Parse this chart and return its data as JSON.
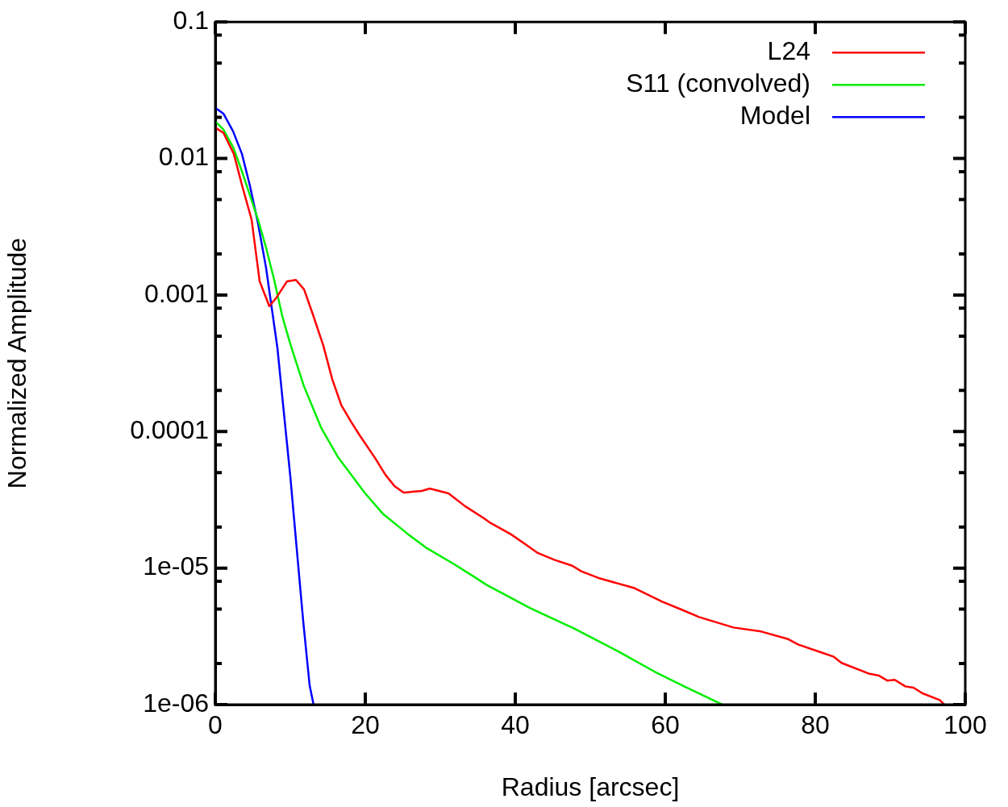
{
  "chart_data": {
    "type": "line",
    "xlabel": "Radius [arcsec]",
    "ylabel": "Normalized Amplitude",
    "log": "y",
    "grid": false,
    "legend": "top right",
    "marker": "none",
    "line_style": "solid",
    "xlim": [
      0,
      100
    ],
    "xticks": [
      0,
      20,
      40,
      60,
      80,
      100
    ],
    "ylim": [
      1e-06,
      0.1
    ],
    "yticks": [
      {
        "value": 1e-06,
        "label": "1e-06"
      },
      {
        "value": 2e-06,
        "label": null
      },
      {
        "value": 5e-06,
        "label": null
      },
      {
        "value": 8e-06,
        "label": null
      },
      {
        "value": 1e-05,
        "label": "1e-05"
      },
      {
        "value": 2e-05,
        "label": null
      },
      {
        "value": 5e-05,
        "label": null
      },
      {
        "value": 8e-05,
        "label": null
      },
      {
        "value": 0.0001,
        "label": "0.0001"
      },
      {
        "value": 0.0002,
        "label": null
      },
      {
        "value": 0.0005,
        "label": null
      },
      {
        "value": 0.0008,
        "label": null
      },
      {
        "value": 0.001,
        "label": "0.001"
      },
      {
        "value": 0.002,
        "label": null
      },
      {
        "value": 0.005,
        "label": null
      },
      {
        "value": 0.008,
        "label": null
      },
      {
        "value": 0.01,
        "label": "0.01"
      },
      {
        "value": 0.02,
        "label": null
      },
      {
        "value": 0.05,
        "label": null
      },
      {
        "value": 0.08,
        "label": null
      },
      {
        "value": 0.1,
        "label": "0.1"
      }
    ],
    "series": [
      {
        "name": "L24",
        "color": "#ff0000",
        "x": [
          0,
          1.08,
          2.47,
          3.55,
          4.84,
          5.91,
          7.2,
          8.17,
          9.57,
          10.75,
          11.83,
          13.0,
          14.4,
          15.6,
          16.8,
          18.1,
          19.2,
          21.3,
          22.7,
          23.9,
          25.1,
          27.5,
          28.6,
          31.1,
          33.3,
          35.8,
          36.7,
          39.4,
          41.6,
          43.0,
          45.2,
          47.6,
          48.8,
          51.3,
          55.9,
          59.6,
          62.0,
          64.5,
          69.1,
          72.8,
          76.3,
          77.7,
          81.1,
          82.4,
          83.5,
          87.1,
          88.5,
          89.6,
          90.6,
          92.0,
          93.1,
          94.3,
          96.6,
          97.2
        ],
        "values": [
          0.0168,
          0.0154,
          0.0108,
          0.0064,
          0.00357,
          0.00126,
          0.000828,
          0.00096,
          0.00126,
          0.00129,
          0.0011,
          0.000723,
          0.000426,
          0.000241,
          0.000156,
          0.000118,
          9.47e-05,
          6.4e-05,
          4.81e-05,
          3.98e-05,
          3.57e-05,
          3.67e-05,
          3.82e-05,
          3.52e-05,
          2.84e-05,
          2.32e-05,
          2.14e-05,
          1.77e-05,
          1.46e-05,
          1.29e-05,
          1.15e-05,
          1.04e-05,
          9.47e-06,
          8.39e-06,
          7.13e-06,
          5.67e-06,
          5.01e-06,
          4.38e-06,
          3.67e-06,
          3.43e-06,
          3.03e-06,
          2.76e-06,
          2.38e-06,
          2.25e-06,
          2.02e-06,
          1.69e-06,
          1.63e-06,
          1.5e-06,
          1.52e-06,
          1.36e-06,
          1.33e-06,
          1.21e-06,
          1.08e-06,
          1e-06
        ]
      },
      {
        "name": "S11 (convolved)",
        "color": "#00ee00",
        "x": [
          0,
          1.08,
          2.37,
          3.55,
          4.62,
          5.7,
          6.77,
          7.85,
          8.92,
          10.0,
          11.8,
          14.1,
          16.3,
          19.9,
          22.4,
          25.7,
          28.2,
          31.7,
          34.2,
          36.2,
          42.0,
          47.8,
          53.8,
          58.6,
          62.3,
          67.6
        ],
        "values": [
          0.0187,
          0.0163,
          0.0121,
          0.00805,
          0.00536,
          0.00357,
          0.00222,
          0.00129,
          0.000703,
          0.000438,
          0.000216,
          0.000107,
          6.57e-05,
          3.57e-05,
          2.48e-05,
          1.77e-05,
          1.4e-05,
          1.08e-05,
          8.85e-06,
          7.52e-06,
          5.08e-06,
          3.62e-06,
          2.44e-06,
          1.74e-06,
          1.38e-06,
          1e-06
        ]
      },
      {
        "name": "Model",
        "color": "#0000ff",
        "x": [
          0,
          1.08,
          2.37,
          3.55,
          4.62,
          5.7,
          6.77,
          7.53,
          8.28,
          9.14,
          10.0,
          10.86,
          11.72,
          12.58,
          13.1
        ],
        "values": [
          0.0235,
          0.0213,
          0.0158,
          0.0108,
          0.0063,
          0.00334,
          0.00158,
          0.0008,
          0.00041,
          0.000138,
          4.69e-05,
          1.38e-05,
          4.09e-06,
          1.38e-06,
          1e-06
        ]
      }
    ]
  }
}
